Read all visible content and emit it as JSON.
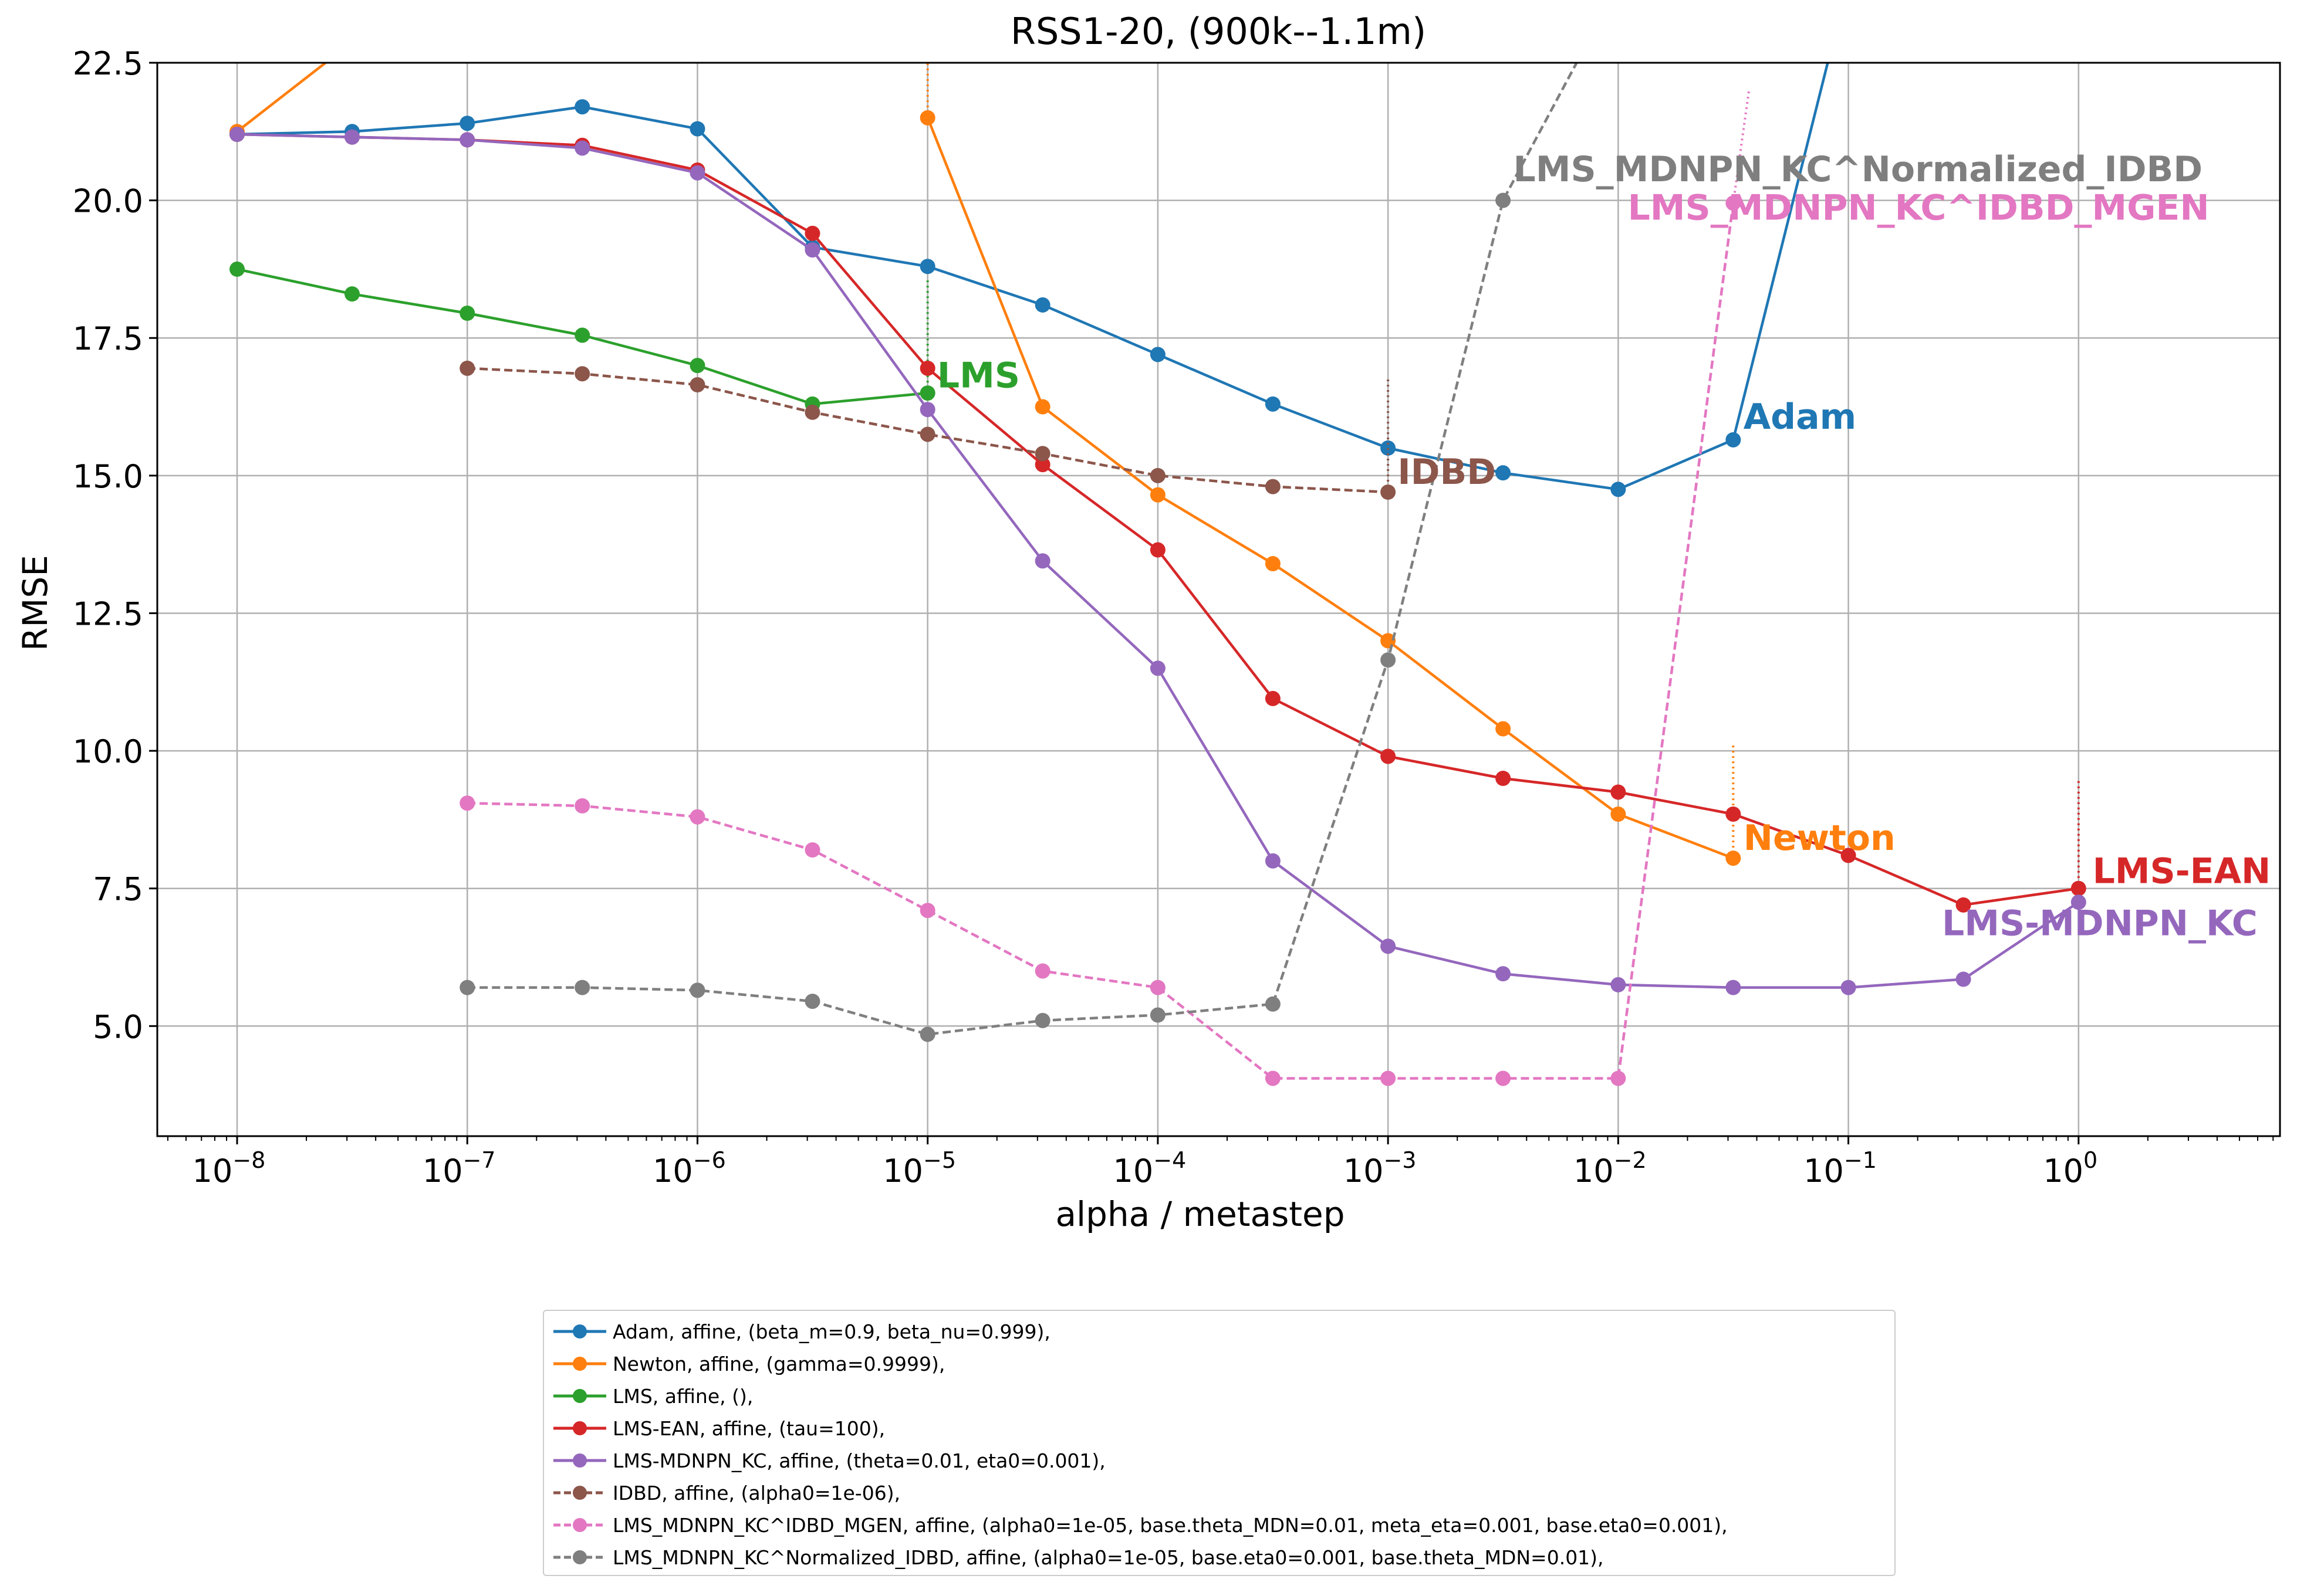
{
  "chart_data": {
    "type": "line",
    "title": "RSS1-20,   (900k--1.1m)",
    "xlabel": "alpha / metastep",
    "ylabel": "RMSE",
    "xscale": "log",
    "xlim": [
      4.5e-09,
      7.5
    ],
    "ylim": [
      3.0,
      22.5
    ],
    "yticks": [
      5.0,
      7.5,
      10.0,
      12.5,
      15.0,
      17.5,
      20.0,
      22.5
    ],
    "ytick_labels": [
      "5.0",
      "7.5",
      "10.0",
      "12.5",
      "15.0",
      "17.5",
      "20.0",
      "22.5"
    ],
    "xticks": [
      1e-08,
      1e-07,
      1e-06,
      1e-05,
      0.0001,
      0.001,
      0.01,
      0.1,
      1
    ],
    "xtick_labels": [
      {
        "base": "10",
        "exp": "−8"
      },
      {
        "base": "10",
        "exp": "−7"
      },
      {
        "base": "10",
        "exp": "−6"
      },
      {
        "base": "10",
        "exp": "−5"
      },
      {
        "base": "10",
        "exp": "−4"
      },
      {
        "base": "10",
        "exp": "−3"
      },
      {
        "base": "10",
        "exp": "−2"
      },
      {
        "base": "10",
        "exp": "−1"
      },
      {
        "base": "10",
        "exp": "0"
      }
    ],
    "grid": true,
    "legend_placement": "below",
    "series": [
      {
        "name": "Adam, affine, (beta_m=0.9, beta_nu=0.999),",
        "label": "Adam",
        "color": "#1f77b4",
        "dash": "solid",
        "x": [
          1e-08,
          3.16e-08,
          1e-07,
          3.16e-07,
          1e-06,
          3.16e-06,
          1e-05,
          3.16e-05,
          0.0001,
          0.000316,
          0.001,
          0.00316,
          0.01,
          0.0316,
          0.1
        ],
        "y": [
          21.2,
          21.25,
          21.4,
          21.7,
          21.3,
          19.15,
          18.8,
          18.1,
          17.2,
          16.3,
          15.5,
          15.05,
          14.75,
          15.65,
          24.0
        ],
        "marker_x": [
          1e-08,
          3.16e-08,
          1e-07,
          3.16e-07,
          1e-06,
          3.16e-06,
          1e-05,
          3.16e-05,
          0.0001,
          0.000316,
          0.001,
          0.00316,
          0.01,
          0.0316
        ],
        "marker_y": [
          21.2,
          21.25,
          21.4,
          21.7,
          21.3,
          19.15,
          18.8,
          18.1,
          17.2,
          16.3,
          15.5,
          15.05,
          14.75,
          15.65
        ],
        "best_x": 0.01,
        "best_y": 14.75,
        "label_at": [
          0.035,
          15.85
        ]
      },
      {
        "name": "Newton, affine, (gamma=0.9999),",
        "label": "Newton",
        "color": "#ff7f0e",
        "dash": "solid",
        "x": [
          1e-08,
          2.6e-08
        ],
        "y": [
          21.25,
          22.6
        ],
        "segments": [
          {
            "x": [
              1e-05,
              3.16e-05,
              0.0001,
              0.000316,
              0.001,
              0.00316,
              0.01,
              0.0316
            ],
            "y": [
              21.5,
              16.25,
              14.65,
              13.4,
              12.0,
              10.4,
              8.85,
              8.05
            ]
          }
        ],
        "marker_x": [
          1e-08,
          1e-05,
          3.16e-05,
          0.0001,
          0.000316,
          0.001,
          0.00316,
          0.01,
          0.0316
        ],
        "marker_y": [
          21.25,
          21.5,
          16.25,
          14.65,
          13.4,
          12.0,
          10.4,
          8.85,
          8.05
        ],
        "errbars": [
          {
            "x": 1e-05,
            "y0": 21.5,
            "y1": 22.8
          },
          {
            "x": 0.0316,
            "y0": 8.05,
            "y1": 10.1
          }
        ],
        "label_at": [
          0.035,
          8.2
        ]
      },
      {
        "name": "LMS, affine, (),",
        "label": "LMS",
        "color": "#2ca02c",
        "dash": "solid",
        "x": [
          1e-08,
          3.16e-08,
          1e-07,
          3.16e-07,
          1e-06,
          3.16e-06,
          1e-05
        ],
        "y": [
          18.75,
          18.3,
          17.95,
          17.55,
          17.0,
          16.3,
          16.5
        ],
        "errbars": [
          {
            "x": 1e-05,
            "y0": 16.5,
            "y1": 18.6
          }
        ],
        "label_at": [
          1.1e-05,
          16.6
        ]
      },
      {
        "name": "LMS-EAN, affine, (tau=100),",
        "label": "LMS-EAN",
        "color": "#d62728",
        "dash": "solid",
        "x": [
          1e-08,
          3.16e-08,
          1e-07,
          3.16e-07,
          1e-06,
          3.16e-06,
          1e-05,
          3.16e-05,
          0.0001,
          0.000316,
          0.001,
          0.00316,
          0.01,
          0.0316,
          0.1,
          0.316,
          1
        ],
        "y": [
          21.2,
          21.15,
          21.1,
          21.0,
          20.55,
          19.4,
          16.95,
          15.2,
          13.65,
          10.95,
          9.9,
          9.5,
          9.25,
          8.85,
          8.1,
          7.2,
          7.5
        ],
        "errbars": [
          {
            "x": 1,
            "y0": 7.5,
            "y1": 9.5
          }
        ],
        "label_at": [
          1.15,
          7.6
        ]
      },
      {
        "name": "LMS-MDNPN_KC, affine, (theta=0.01, eta0=0.001),",
        "label": "LMS-MDNPN_KC",
        "color": "#9467bd",
        "dash": "solid",
        "x": [
          1e-08,
          3.16e-08,
          1e-07,
          3.16e-07,
          1e-06,
          3.16e-06,
          1e-05,
          3.16e-05,
          0.0001,
          0.000316,
          0.001,
          0.00316,
          0.01,
          0.0316,
          0.1,
          0.316,
          1
        ],
        "y": [
          21.2,
          21.15,
          21.1,
          20.95,
          20.5,
          19.1,
          16.2,
          13.45,
          11.5,
          8.0,
          6.45,
          5.95,
          5.75,
          5.7,
          5.7,
          5.85,
          7.25
        ],
        "label_at": [
          0.255,
          6.65
        ]
      },
      {
        "name": "IDBD, affine, (alpha0=1e-06),",
        "label": "IDBD",
        "color": "#8c564b",
        "dash": "dashed",
        "x": [
          1e-07,
          3.16e-07,
          1e-06,
          3.16e-06,
          1e-05,
          3.16e-05,
          0.0001,
          0.000316,
          0.001
        ],
        "y": [
          16.95,
          16.85,
          16.65,
          16.15,
          15.75,
          15.4,
          15.0,
          14.8,
          14.7
        ],
        "errbars": [
          {
            "x": 0.001,
            "y0": 14.7,
            "y1": 16.8
          }
        ],
        "label_at": [
          0.0011,
          14.85
        ]
      },
      {
        "name": "LMS_MDNPN_KC^IDBD_MGEN, affine, (alpha0=1e-05, base.theta_MDN=0.01, meta_eta=0.001, base.eta0=0.001),",
        "label": "LMS_MDNPN_KC^IDBD_MGEN",
        "color": "#e377c2",
        "dash": "dashed",
        "x": [
          1e-07,
          3.16e-07,
          1e-06,
          3.16e-06,
          1e-05,
          3.16e-05,
          0.0001,
          0.000316,
          0.001,
          0.00316,
          0.01,
          0.0316
        ],
        "y": [
          9.05,
          9.0,
          8.8,
          8.2,
          7.1,
          6.0,
          5.7,
          4.05,
          4.05,
          4.05,
          4.05,
          19.95
        ],
        "errbars": [
          {
            "x": 0.0316,
            "y0": 19.95,
            "y1": 22.0,
            "x1": 0.037
          }
        ],
        "label_at": [
          0.011,
          19.65
        ]
      },
      {
        "name": "LMS_MDNPN_KC^Normalized_IDBD, affine, (alpha0=1e-05, base.eta0=0.001, base.theta_MDN=0.01),",
        "label": "LMS_MDNPN_KC^Normalized_IDBD",
        "color": "#7f7f7f",
        "dash": "dashed",
        "x": [
          1e-07,
          3.16e-07,
          1e-06,
          3.16e-06,
          1e-05,
          3.16e-05,
          0.0001,
          0.000316,
          0.001,
          0.00316,
          0.007
        ],
        "y": [
          5.7,
          5.7,
          5.65,
          5.45,
          4.85,
          5.1,
          5.2,
          5.4,
          11.65,
          20.0,
          22.7
        ],
        "marker_x": [
          1e-07,
          3.16e-07,
          1e-06,
          3.16e-06,
          1e-05,
          3.16e-05,
          0.0001,
          0.000316,
          0.001,
          0.00316
        ],
        "marker_y": [
          5.7,
          5.7,
          5.65,
          5.45,
          4.85,
          5.1,
          5.2,
          5.4,
          11.65,
          20.0
        ],
        "label_at": [
          0.0035,
          20.35
        ]
      }
    ]
  }
}
